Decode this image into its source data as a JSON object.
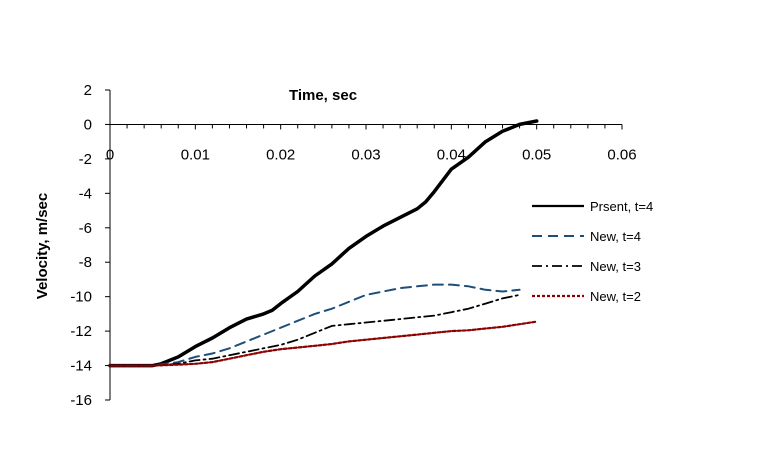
{
  "chart_data": {
    "type": "line",
    "xlabel": "Time, sec",
    "ylabel": "Velocity, m/sec",
    "xlim": [
      0,
      0.06
    ],
    "ylim": [
      -16,
      2
    ],
    "xticks": [
      0,
      0.01,
      0.02,
      0.03,
      0.04,
      0.05,
      0.06
    ],
    "xtick_labels": [
      "0",
      "0.01",
      "0.02",
      "0.03",
      "0.04",
      "0.05",
      "0.06"
    ],
    "yticks": [
      2,
      0,
      -2,
      -4,
      -6,
      -8,
      -10,
      -12,
      -14,
      -16
    ],
    "ytick_labels": [
      "2",
      "0",
      "-2",
      "-4",
      "-6",
      "-8",
      "-10",
      "-12",
      "-14",
      "-16"
    ],
    "legend_position": "right",
    "series": [
      {
        "name": "Prsent, t=4",
        "color": "#000000",
        "style": "solid",
        "x": [
          0,
          0.005,
          0.006,
          0.008,
          0.01,
          0.012,
          0.014,
          0.016,
          0.018,
          0.019,
          0.02,
          0.022,
          0.024,
          0.026,
          0.028,
          0.03,
          0.032,
          0.034,
          0.036,
          0.037,
          0.038,
          0.04,
          0.042,
          0.044,
          0.046,
          0.048,
          0.05
        ],
        "y": [
          -14,
          -14,
          -13.9,
          -13.5,
          -12.9,
          -12.4,
          -11.8,
          -11.3,
          -11.0,
          -10.8,
          -10.4,
          -9.7,
          -8.8,
          -8.1,
          -7.2,
          -6.5,
          -5.9,
          -5.4,
          -4.9,
          -4.5,
          -3.9,
          -2.6,
          -1.9,
          -1.0,
          -0.4,
          0.0,
          0.2
        ]
      },
      {
        "name": "New, t=4",
        "color": "#1f4e79",
        "style": "dashed",
        "x": [
          0,
          0.005,
          0.008,
          0.01,
          0.012,
          0.014,
          0.016,
          0.018,
          0.02,
          0.022,
          0.024,
          0.026,
          0.028,
          0.03,
          0.032,
          0.034,
          0.036,
          0.038,
          0.04,
          0.042,
          0.044,
          0.046,
          0.048
        ],
        "y": [
          -14,
          -14,
          -13.8,
          -13.5,
          -13.3,
          -13.0,
          -12.6,
          -12.2,
          -11.8,
          -11.4,
          -11.0,
          -10.7,
          -10.3,
          -9.9,
          -9.7,
          -9.5,
          -9.4,
          -9.3,
          -9.3,
          -9.4,
          -9.6,
          -9.7,
          -9.6
        ]
      },
      {
        "name": "New, t=3",
        "color": "#000000",
        "style": "dashdot",
        "x": [
          0,
          0.005,
          0.008,
          0.01,
          0.012,
          0.014,
          0.016,
          0.018,
          0.02,
          0.022,
          0.024,
          0.026,
          0.028,
          0.03,
          0.032,
          0.034,
          0.036,
          0.038,
          0.04,
          0.042,
          0.044,
          0.046,
          0.048
        ],
        "y": [
          -14,
          -14,
          -13.9,
          -13.7,
          -13.6,
          -13.4,
          -13.2,
          -13.0,
          -12.8,
          -12.5,
          -12.1,
          -11.7,
          -11.6,
          -11.5,
          -11.4,
          -11.3,
          -11.2,
          -11.1,
          -10.9,
          -10.7,
          -10.4,
          -10.1,
          -9.9
        ]
      },
      {
        "name": "New, t=2",
        "color": "#8b0000",
        "style": "dotted",
        "x": [
          0,
          0.005,
          0.008,
          0.01,
          0.012,
          0.014,
          0.016,
          0.018,
          0.02,
          0.022,
          0.024,
          0.026,
          0.028,
          0.03,
          0.032,
          0.034,
          0.036,
          0.038,
          0.04,
          0.042,
          0.044,
          0.046,
          0.048,
          0.05
        ],
        "y": [
          -14,
          -14,
          -13.95,
          -13.9,
          -13.8,
          -13.6,
          -13.4,
          -13.2,
          -13.05,
          -12.95,
          -12.85,
          -12.75,
          -12.6,
          -12.5,
          -12.4,
          -12.3,
          -12.2,
          -12.1,
          -12.0,
          -11.95,
          -11.85,
          -11.75,
          -11.6,
          -11.45
        ]
      }
    ]
  }
}
